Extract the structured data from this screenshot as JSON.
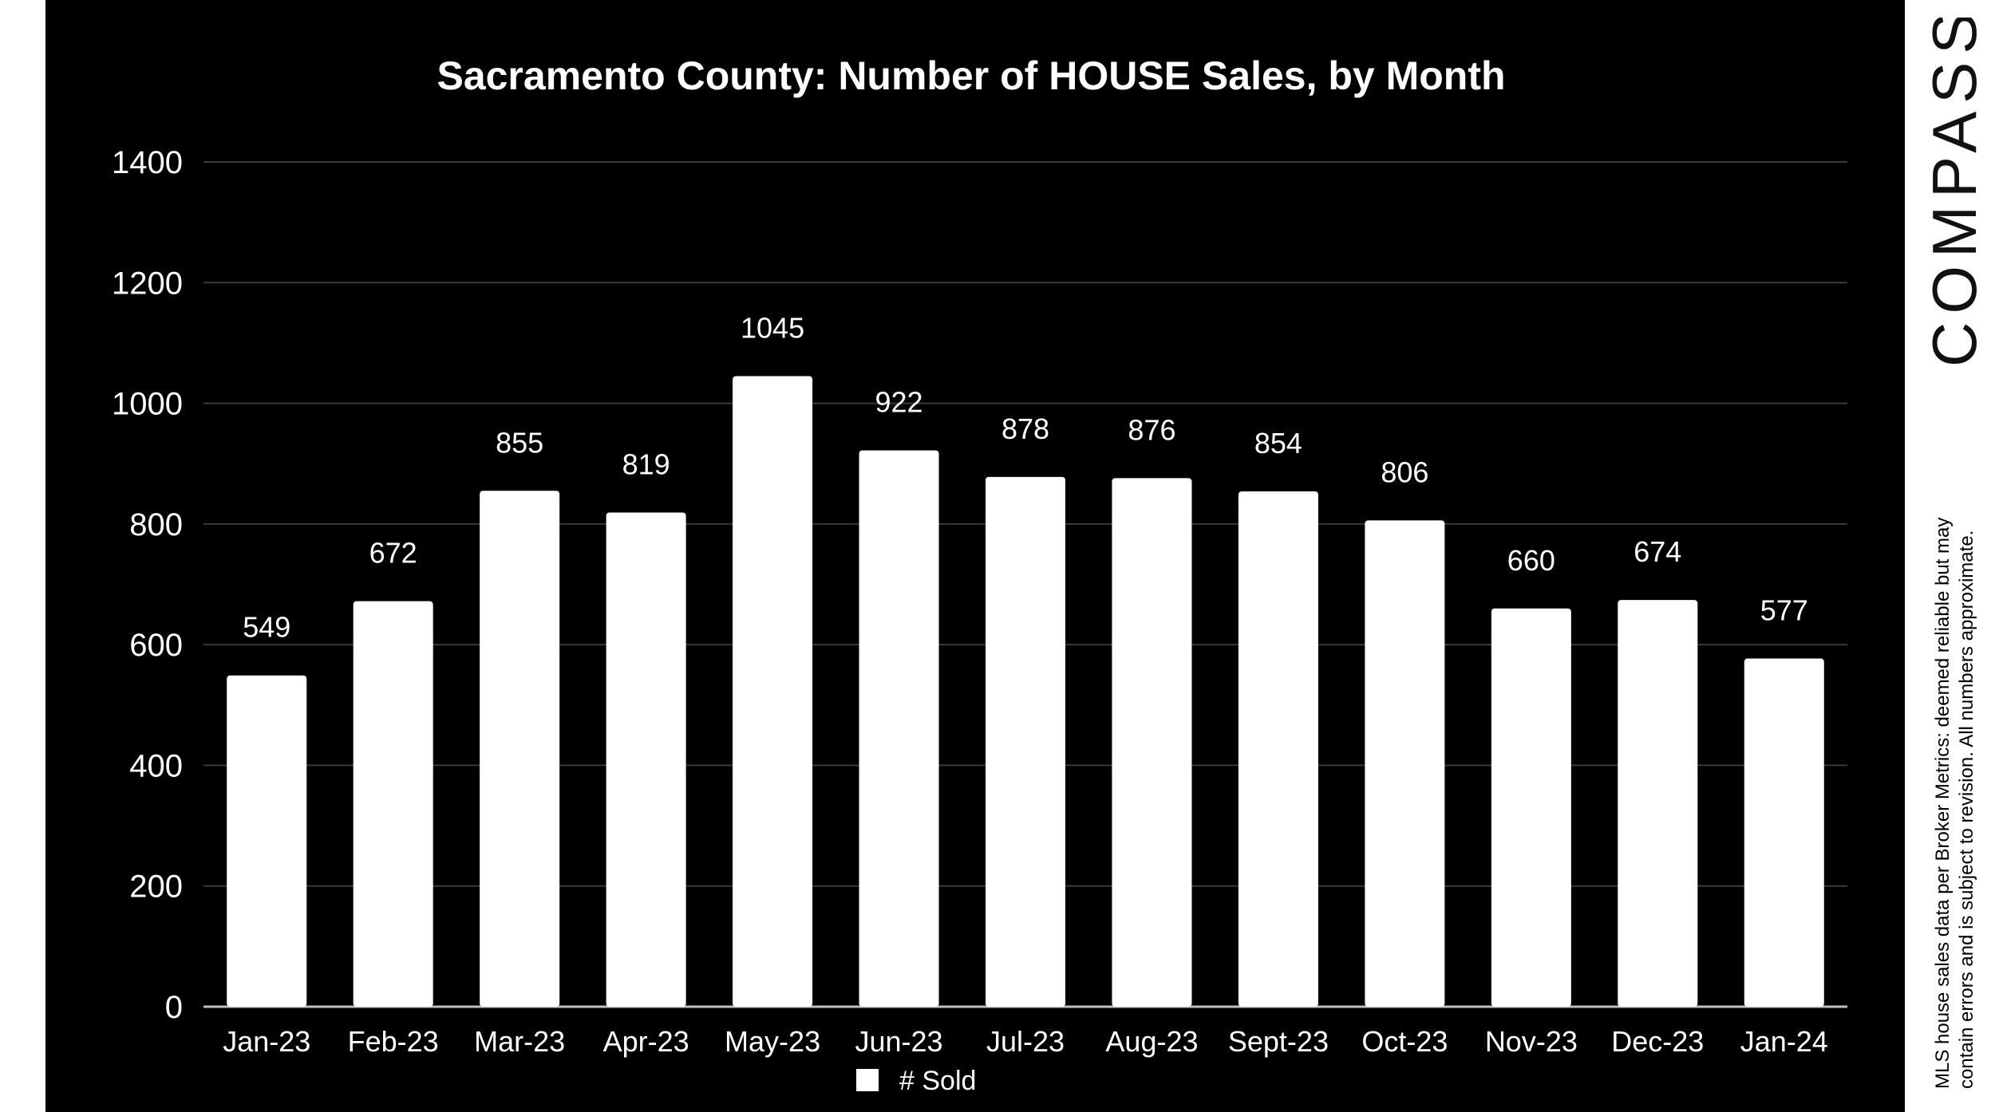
{
  "brand": {
    "name": "COMPASS"
  },
  "source_note": {
    "line1": "MLS house sales data per Broker Metrics: deemed reliable but may",
    "line2": "contain errors and is subject to revision. All numbers approximate."
  },
  "colors": {
    "panel_bg": "#000000",
    "bar": "#ffffff",
    "text": "#ffffff",
    "grid": "#3a3a3a",
    "logo": "#111111"
  },
  "chart_data": {
    "type": "bar",
    "title": "Sacramento County: Number of HOUSE Sales, by Month",
    "categories": [
      "Jan-23",
      "Feb-23",
      "Mar-23",
      "Apr-23",
      "May-23",
      "Jun-23",
      "Jul-23",
      "Aug-23",
      "Sept-23",
      "Oct-23",
      "Nov-23",
      "Dec-23",
      "Jan-24"
    ],
    "series": [
      {
        "name": "# Sold",
        "values": [
          549,
          672,
          855,
          819,
          1045,
          922,
          878,
          876,
          854,
          806,
          660,
          674,
          577
        ]
      }
    ],
    "ylim": [
      0,
      1400
    ],
    "yticks": [
      "0",
      "200",
      "400",
      "600",
      "800",
      "1000",
      "1200",
      "1400"
    ],
    "xlabel": "",
    "ylabel": "",
    "grid": true,
    "legend": "bottom-center"
  }
}
